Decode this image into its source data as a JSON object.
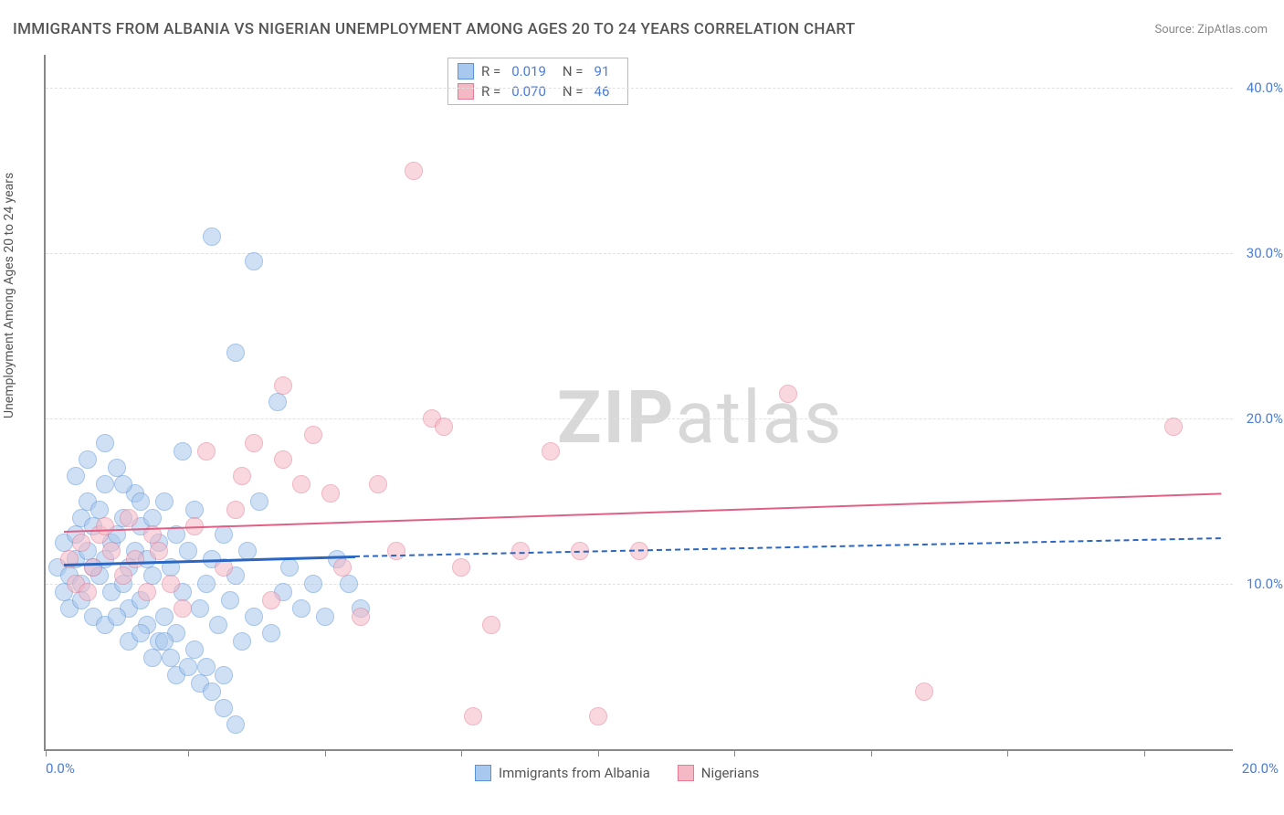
{
  "title": "IMMIGRANTS FROM ALBANIA VS NIGERIAN UNEMPLOYMENT AMONG AGES 20 TO 24 YEARS CORRELATION CHART",
  "source": "Source: ZipAtlas.com",
  "ylabel": "Unemployment Among Ages 20 to 24 years",
  "watermark_bold": "ZIP",
  "watermark_light": "atlas",
  "chart": {
    "type": "scatter",
    "xlim": [
      0,
      20
    ],
    "ylim": [
      0,
      42
    ],
    "background_color": "#ffffff",
    "grid_color": "#e0e0e0",
    "axis_color": "#888888",
    "yticks": [
      {
        "value": 10,
        "label": "10.0%"
      },
      {
        "value": 20,
        "label": "20.0%"
      },
      {
        "value": 30,
        "label": "30.0%"
      },
      {
        "value": 40,
        "label": "40.0%"
      }
    ],
    "xticks": [
      0,
      2.4,
      4.7,
      7.0,
      9.3,
      11.6,
      13.9,
      16.2,
      18.5
    ],
    "xtick_labels": {
      "left": "0.0%",
      "right": "20.0%"
    },
    "series": [
      {
        "name": "Immigrants from Albania",
        "fill": "#a8c8ed",
        "stroke": "#5b94d6",
        "fill_opacity": 0.55,
        "marker_radius": 9,
        "r_value": "0.019",
        "n_value": "91",
        "trend": {
          "x1": 0.3,
          "y1": 11.2,
          "x2": 5.2,
          "y2": 11.7,
          "color": "#2a66c2",
          "width": 3,
          "dash_x2": 19.8,
          "dash_y2": 12.8
        },
        "points": [
          [
            0.2,
            11.0
          ],
          [
            0.3,
            12.5
          ],
          [
            0.4,
            10.5
          ],
          [
            0.5,
            13.0
          ],
          [
            0.5,
            11.5
          ],
          [
            0.6,
            14.0
          ],
          [
            0.6,
            10.0
          ],
          [
            0.7,
            12.0
          ],
          [
            0.7,
            15.0
          ],
          [
            0.8,
            11.0
          ],
          [
            0.8,
            13.5
          ],
          [
            0.9,
            10.5
          ],
          [
            0.9,
            14.5
          ],
          [
            1.0,
            16.0
          ],
          [
            1.0,
            11.5
          ],
          [
            1.1,
            12.5
          ],
          [
            1.1,
            9.5
          ],
          [
            1.2,
            13.0
          ],
          [
            1.2,
            17.0
          ],
          [
            1.3,
            10.0
          ],
          [
            1.3,
            14.0
          ],
          [
            1.4,
            11.0
          ],
          [
            1.4,
            8.5
          ],
          [
            1.5,
            12.0
          ],
          [
            1.5,
            15.5
          ],
          [
            1.6,
            13.5
          ],
          [
            1.6,
            9.0
          ],
          [
            1.7,
            11.5
          ],
          [
            1.7,
            7.5
          ],
          [
            1.8,
            14.0
          ],
          [
            1.8,
            10.5
          ],
          [
            1.9,
            12.5
          ],
          [
            1.9,
            6.5
          ],
          [
            2.0,
            15.0
          ],
          [
            2.0,
            8.0
          ],
          [
            2.1,
            11.0
          ],
          [
            2.1,
            5.5
          ],
          [
            2.2,
            13.0
          ],
          [
            2.2,
            7.0
          ],
          [
            2.3,
            9.5
          ],
          [
            2.3,
            18.0
          ],
          [
            2.4,
            12.0
          ],
          [
            2.5,
            6.0
          ],
          [
            2.5,
            14.5
          ],
          [
            2.6,
            8.5
          ],
          [
            2.7,
            10.0
          ],
          [
            2.7,
            5.0
          ],
          [
            2.8,
            31.0
          ],
          [
            2.8,
            11.5
          ],
          [
            2.9,
            7.5
          ],
          [
            3.0,
            13.0
          ],
          [
            3.0,
            4.5
          ],
          [
            3.1,
            9.0
          ],
          [
            3.2,
            24.0
          ],
          [
            3.2,
            10.5
          ],
          [
            3.3,
            6.5
          ],
          [
            3.4,
            12.0
          ],
          [
            3.5,
            29.5
          ],
          [
            3.5,
            8.0
          ],
          [
            3.6,
            15.0
          ],
          [
            3.8,
            7.0
          ],
          [
            3.9,
            21.0
          ],
          [
            4.0,
            9.5
          ],
          [
            4.1,
            11.0
          ],
          [
            4.3,
            8.5
          ],
          [
            4.5,
            10.0
          ],
          [
            4.7,
            8.0
          ],
          [
            4.9,
            11.5
          ],
          [
            5.1,
            10.0
          ],
          [
            5.3,
            8.5
          ],
          [
            0.3,
            9.5
          ],
          [
            0.4,
            8.5
          ],
          [
            0.6,
            9.0
          ],
          [
            0.8,
            8.0
          ],
          [
            1.0,
            7.5
          ],
          [
            1.2,
            8.0
          ],
          [
            1.4,
            6.5
          ],
          [
            1.6,
            7.0
          ],
          [
            1.8,
            5.5
          ],
          [
            2.0,
            6.5
          ],
          [
            2.2,
            4.5
          ],
          [
            2.4,
            5.0
          ],
          [
            2.6,
            4.0
          ],
          [
            2.8,
            3.5
          ],
          [
            3.0,
            2.5
          ],
          [
            3.2,
            1.5
          ],
          [
            0.5,
            16.5
          ],
          [
            0.7,
            17.5
          ],
          [
            1.0,
            18.5
          ],
          [
            1.3,
            16.0
          ],
          [
            1.6,
            15.0
          ]
        ]
      },
      {
        "name": "Nigerians",
        "fill": "#f5b8c5",
        "stroke": "#e47a94",
        "fill_opacity": 0.55,
        "marker_radius": 9,
        "r_value": "0.070",
        "n_value": "46",
        "trend": {
          "x1": 0.3,
          "y1": 13.2,
          "x2": 19.8,
          "y2": 15.5,
          "color": "#e06085",
          "width": 2
        },
        "points": [
          [
            0.4,
            11.5
          ],
          [
            0.6,
            12.5
          ],
          [
            0.8,
            11.0
          ],
          [
            0.9,
            13.0
          ],
          [
            1.1,
            12.0
          ],
          [
            1.3,
            10.5
          ],
          [
            1.5,
            11.5
          ],
          [
            1.7,
            9.5
          ],
          [
            1.9,
            12.0
          ],
          [
            2.1,
            10.0
          ],
          [
            2.3,
            8.5
          ],
          [
            2.7,
            18.0
          ],
          [
            3.0,
            11.0
          ],
          [
            3.3,
            16.5
          ],
          [
            3.5,
            18.5
          ],
          [
            3.8,
            9.0
          ],
          [
            4.0,
            22.0
          ],
          [
            4.3,
            16.0
          ],
          [
            4.5,
            19.0
          ],
          [
            4.8,
            15.5
          ],
          [
            5.0,
            11.0
          ],
          [
            5.3,
            8.0
          ],
          [
            5.6,
            16.0
          ],
          [
            5.9,
            12.0
          ],
          [
            6.2,
            35.0
          ],
          [
            6.5,
            20.0
          ],
          [
            6.7,
            19.5
          ],
          [
            7.0,
            11.0
          ],
          [
            7.2,
            2.0
          ],
          [
            7.5,
            7.5
          ],
          [
            8.0,
            12.0
          ],
          [
            8.5,
            18.0
          ],
          [
            9.0,
            12.0
          ],
          [
            9.3,
            2.0
          ],
          [
            10.0,
            12.0
          ],
          [
            12.5,
            21.5
          ],
          [
            14.8,
            3.5
          ],
          [
            19.0,
            19.5
          ],
          [
            0.5,
            10.0
          ],
          [
            0.7,
            9.5
          ],
          [
            1.0,
            13.5
          ],
          [
            1.4,
            14.0
          ],
          [
            1.8,
            13.0
          ],
          [
            2.5,
            13.5
          ],
          [
            3.2,
            14.5
          ],
          [
            4.0,
            17.5
          ]
        ]
      }
    ],
    "legend_labels": {
      "r": "R  =",
      "n": "N  ="
    }
  }
}
